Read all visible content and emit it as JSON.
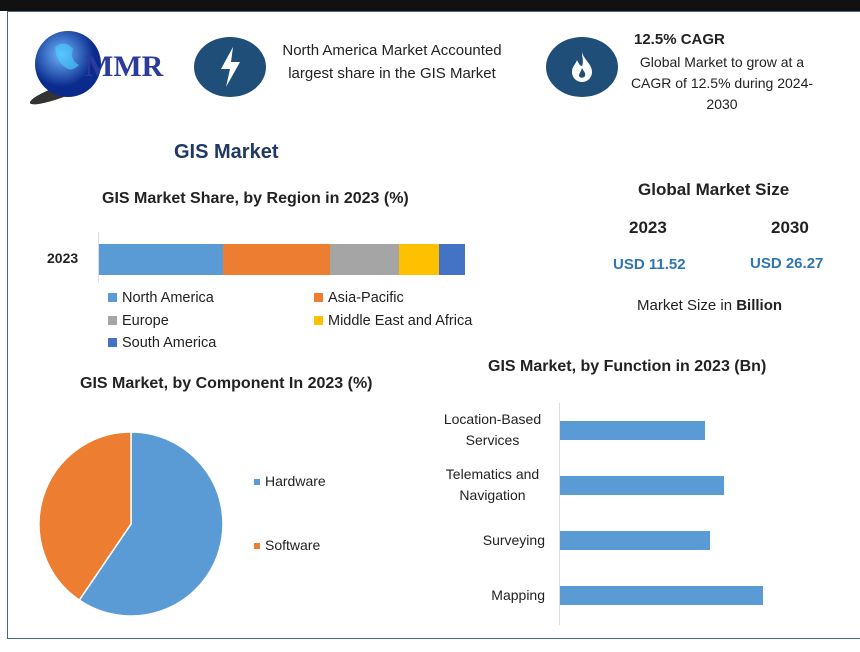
{
  "logo": {
    "text": "MMR"
  },
  "highlights": [
    {
      "icon": "lightning-icon",
      "text": "North America Market Accounted largest share in the GIS Market"
    },
    {
      "icon": "flame-icon",
      "title": "12.5% CAGR",
      "text": "Global Market to grow at a CAGR of 12.5% during 2024-2030"
    }
  ],
  "title": "GIS Market",
  "market_size": {
    "heading": "Global Market Size",
    "years": [
      "2023",
      "2030"
    ],
    "values": [
      "USD 11.52",
      "USD 26.27"
    ],
    "note_prefix": "Market Size in ",
    "note_bold": "Billion",
    "value_color": "#2e75b6"
  },
  "chart_data": [
    {
      "type": "bar",
      "orientation": "horizontal-stacked",
      "title": "GIS Market Share, by Region in 2023 (%)",
      "categories": [
        "2023"
      ],
      "series": [
        {
          "name": "North America",
          "values": [
            34
          ],
          "color": "#5b9bd5"
        },
        {
          "name": "Asia-Pacific",
          "values": [
            29
          ],
          "color": "#ed7d31"
        },
        {
          "name": "Europe",
          "values": [
            19
          ],
          "color": "#a5a5a5"
        },
        {
          "name": "Middle East and Africa",
          "values": [
            11
          ],
          "color": "#ffc000"
        },
        {
          "name": "South America",
          "values": [
            7
          ],
          "color": "#4472c4"
        }
      ],
      "legend": "bottom"
    },
    {
      "type": "pie",
      "title": "GIS Market, by Component In 2023 (%)",
      "labels": [
        "Hardware",
        "Software"
      ],
      "values": [
        59.5,
        40.5
      ],
      "colors": [
        "#5b9bd5",
        "#ed7d31"
      ],
      "legend": "right"
    },
    {
      "type": "bar",
      "orientation": "horizontal",
      "title": "GIS Market, by Function in 2023 (Bn)",
      "categories": [
        "Location-Based Services",
        "Telematics and Navigation",
        "Surveying",
        "Mapping"
      ],
      "category_lines": [
        [
          "Location-Based",
          "Services"
        ],
        [
          "Telematics and",
          "Navigation"
        ],
        [
          "Surveying"
        ],
        [
          "Mapping"
        ]
      ],
      "values": [
        2.52,
        2.85,
        2.61,
        3.53
      ],
      "color": "#5b9bd5"
    }
  ]
}
